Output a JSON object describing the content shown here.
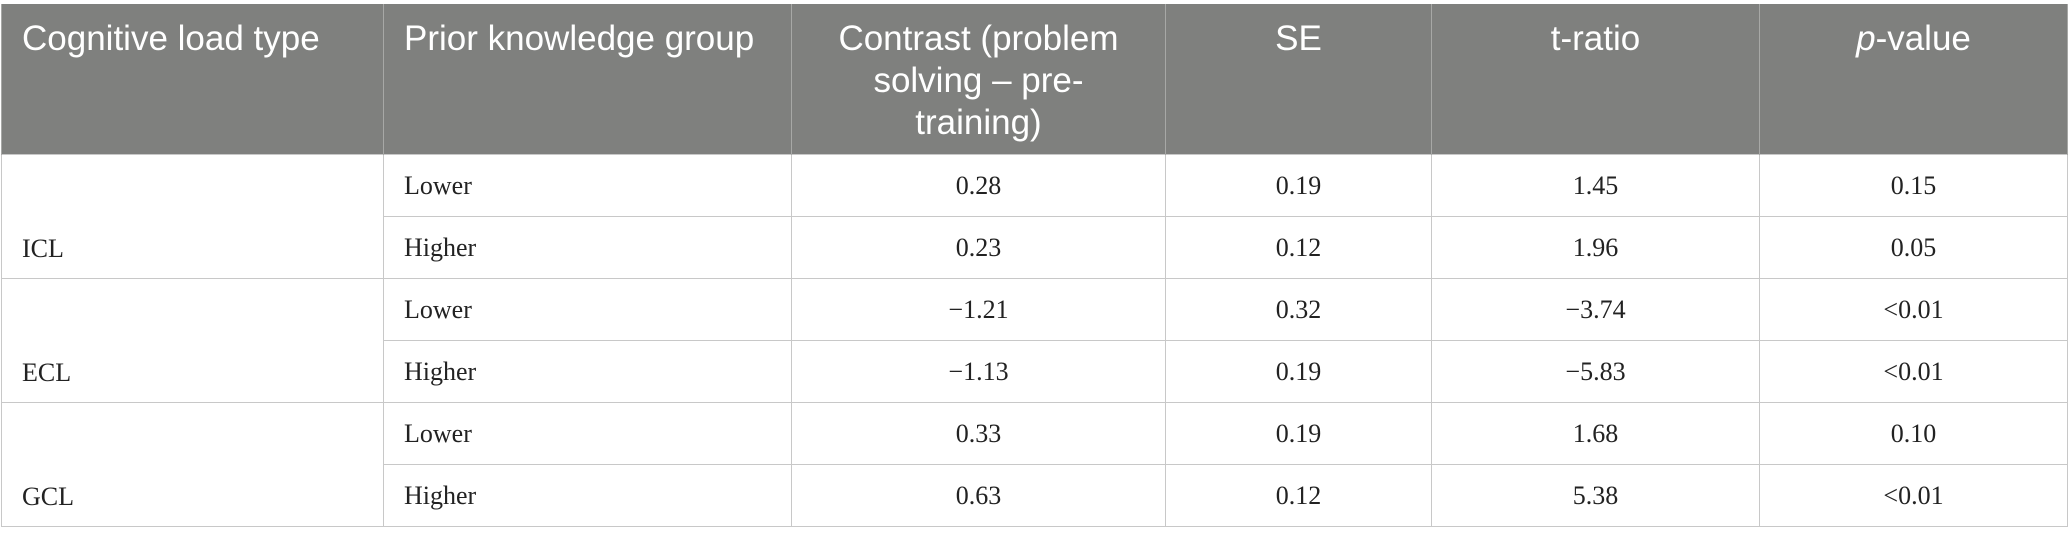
{
  "table": {
    "headers": {
      "cognitive_load_type": "Cognitive load type",
      "prior_knowledge_group": "Prior knowledge group",
      "contrast": "Contrast (problem solving – pre-training)",
      "se": "SE",
      "t_ratio": "t-ratio",
      "p_value_italic": "p",
      "p_value_rest": "-value"
    },
    "groups": [
      {
        "type": "ICL",
        "rows": [
          {
            "group": "Lower",
            "contrast": "0.28",
            "se": "0.19",
            "t": "1.45",
            "p": "0.15"
          },
          {
            "group": "Higher",
            "contrast": "0.23",
            "se": "0.12",
            "t": "1.96",
            "p": "0.05"
          }
        ]
      },
      {
        "type": "ECL",
        "rows": [
          {
            "group": "Lower",
            "contrast": "−1.21",
            "se": "0.32",
            "t": "−3.74",
            "p": "<0.01"
          },
          {
            "group": "Higher",
            "contrast": "−1.13",
            "se": "0.19",
            "t": "−5.83",
            "p": "<0.01"
          }
        ]
      },
      {
        "type": "GCL",
        "rows": [
          {
            "group": "Lower",
            "contrast": "0.33",
            "se": "0.19",
            "t": "1.68",
            "p": "0.10"
          },
          {
            "group": "Higher",
            "contrast": "0.63",
            "se": "0.12",
            "t": "5.38",
            "p": "<0.01"
          }
        ]
      }
    ]
  }
}
